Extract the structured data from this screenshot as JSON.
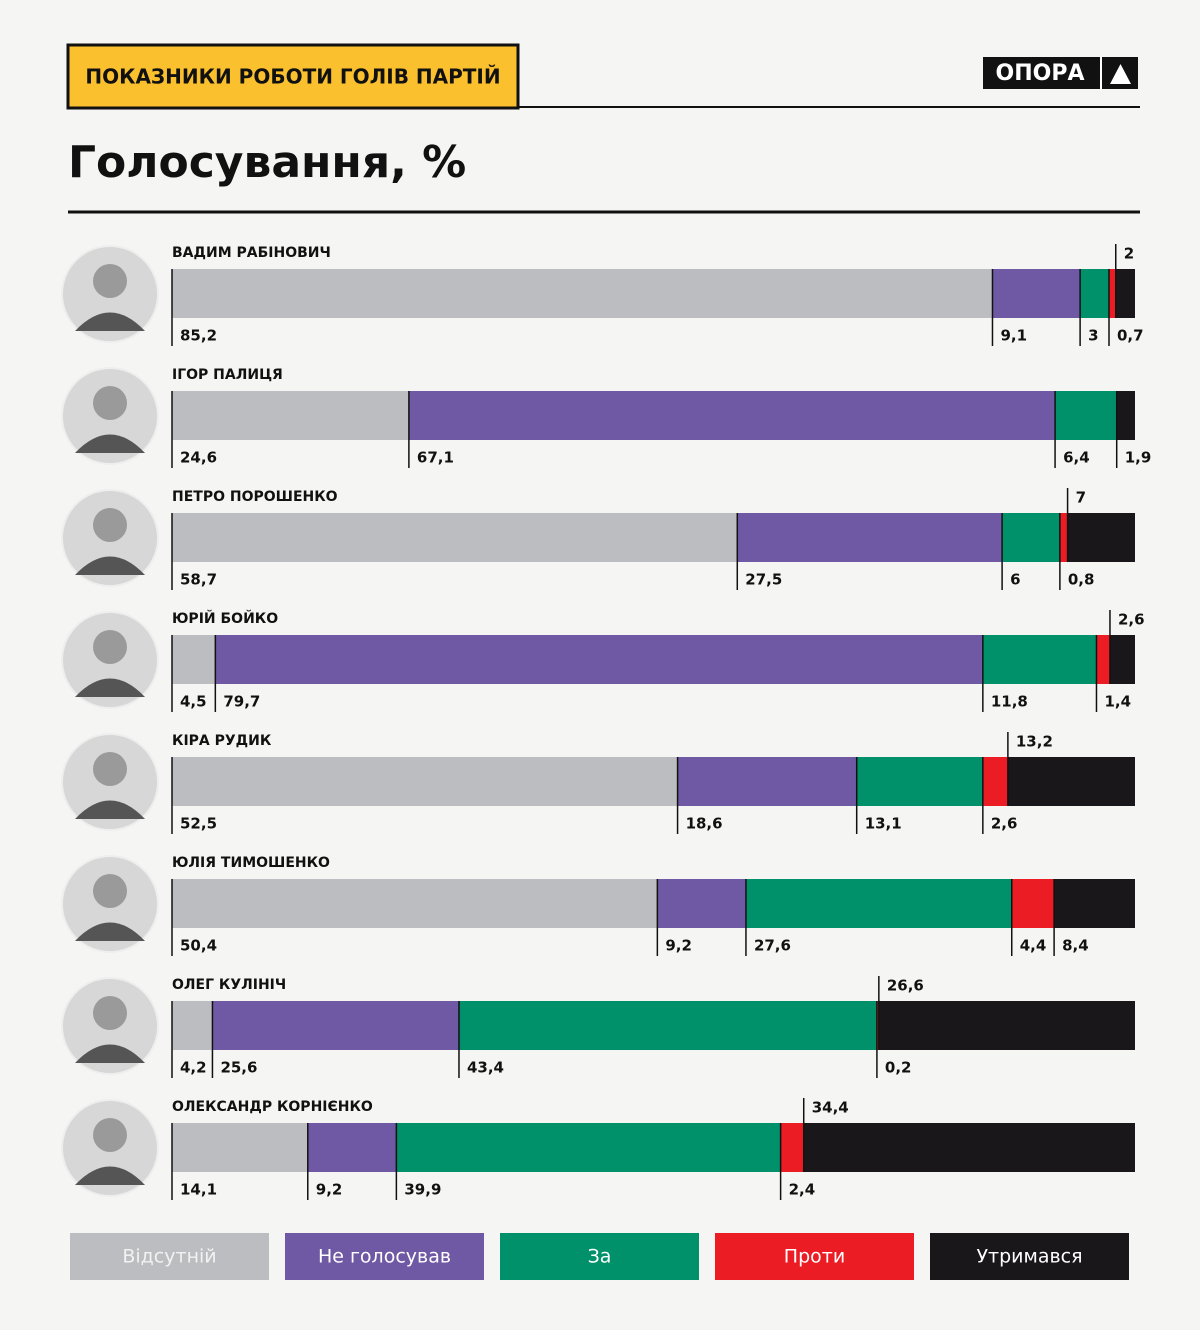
{
  "chart_data": {
    "type": "bar",
    "orientation": "horizontal",
    "stacked": true,
    "header": "ПОКАЗНИКИ РОБОТИ ГОЛІВ ПАРТІЙ",
    "logo": "ОПОРА",
    "title": "Голосування, %",
    "categories": [
      "ВАДИМ РАБІНОВИЧ",
      "ІГОР ПАЛИЦЯ",
      "ПЕТРО ПОРОШЕНКО",
      "ЮРІЙ БОЙКО",
      "КІРА РУДИК",
      "ЮЛІЯ ТИМОШЕНКО",
      "ОЛЕГ КУЛІНІЧ",
      "ОЛЕКСАНДР КОРНІЄНКО"
    ],
    "xlim": [
      0,
      100
    ],
    "series": [
      {
        "name": "Відсутній",
        "color": "#bcbdc0",
        "values": [
          85.2,
          24.6,
          58.7,
          4.5,
          52.5,
          50.4,
          4.2,
          14.1
        ],
        "value_labels": [
          "85,2",
          "24,6",
          "58,7",
          "4,5",
          "52,5",
          "50,4",
          "4,2",
          "14,1"
        ]
      },
      {
        "name": "Не голосував",
        "color": "#7059a4",
        "values": [
          9.1,
          67.1,
          27.5,
          79.7,
          18.6,
          9.2,
          25.6,
          9.2
        ],
        "value_labels": [
          "9,1",
          "67,1",
          "27,5",
          "79,7",
          "18,6",
          "9,2",
          "25,6",
          "9,2"
        ]
      },
      {
        "name": "За",
        "color": "#00906a",
        "values": [
          3,
          6.4,
          6,
          11.8,
          13.1,
          27.6,
          43.4,
          39.9
        ],
        "value_labels": [
          "3",
          "6,4",
          "6",
          "11,8",
          "13,1",
          "27,6",
          "43,4",
          "39,9"
        ]
      },
      {
        "name": "Проти",
        "color": "#ec1c24",
        "values": [
          0.7,
          null,
          0.8,
          1.4,
          2.6,
          4.4,
          0.2,
          2.4
        ],
        "value_labels": [
          "0,7",
          null,
          "0,8",
          "1,4",
          "2,6",
          "4,4",
          "0,2",
          "2,4"
        ]
      },
      {
        "name": "Утримався",
        "color": "#1a171b",
        "values": [
          2,
          1.9,
          7,
          2.6,
          13.2,
          8.4,
          26.6,
          34.4
        ],
        "value_labels": [
          "2",
          "1,9",
          "7",
          "2,6",
          "13,2",
          "8,4",
          "26,6",
          "34,4"
        ]
      }
    ]
  }
}
